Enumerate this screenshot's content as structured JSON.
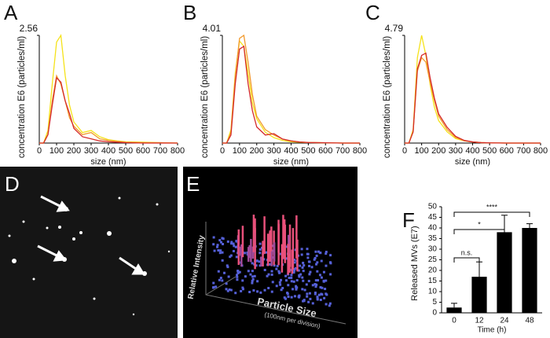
{
  "chart_data": [
    {
      "type": "line",
      "label": "A",
      "x_label": "size (nm)",
      "y_label": "concentration E6 (particles/ml)",
      "x": [
        0,
        25,
        50,
        75,
        100,
        125,
        150,
        175,
        200,
        250,
        300,
        350,
        400,
        450,
        500,
        600,
        700,
        800
      ],
      "series": [
        {
          "color": "#f5e21a",
          "values": [
            0,
            0,
            0.3,
            1.4,
            2.4,
            2.56,
            1.6,
            0.9,
            0.5,
            0.25,
            0.3,
            0.15,
            0.08,
            0.05,
            0.03,
            0.02,
            0.01,
            0
          ]
        },
        {
          "color": "#f29a2e",
          "values": [
            0,
            0,
            0.2,
            1.0,
            1.6,
            1.4,
            1.0,
            0.6,
            0.4,
            0.2,
            0.25,
            0.1,
            0.06,
            0.04,
            0.02,
            0.01,
            0.01,
            0
          ]
        },
        {
          "color": "#d42a2a",
          "values": [
            0,
            0,
            0.2,
            0.9,
            1.55,
            1.45,
            1.0,
            0.7,
            0.35,
            0.15,
            0.1,
            0.05,
            0.03,
            0.02,
            0.01,
            0,
            0,
            0
          ]
        }
      ],
      "xlim": [
        0,
        800
      ],
      "xticks": [
        0,
        100,
        200,
        300,
        400,
        500,
        600,
        700,
        800
      ],
      "ylim": [
        0,
        2.56
      ],
      "yticks": [
        2.56
      ]
    },
    {
      "type": "line",
      "label": "B",
      "x_label": "size (nm)",
      "y_label": "concentration E6 (particles/ml)",
      "x": [
        0,
        25,
        50,
        75,
        100,
        125,
        150,
        175,
        200,
        250,
        300,
        350,
        400,
        450,
        500,
        600,
        700,
        800
      ],
      "series": [
        {
          "color": "#f5e21a",
          "values": [
            0,
            0,
            0.5,
            2.6,
            3.8,
            3.6,
            2.6,
            1.5,
            0.9,
            0.4,
            0.2,
            0.1,
            0.05,
            0.03,
            0.02,
            0.01,
            0,
            0
          ]
        },
        {
          "color": "#f29a2e",
          "values": [
            0,
            0,
            0.4,
            2.5,
            3.9,
            4.01,
            3.0,
            1.8,
            1.0,
            0.5,
            0.3,
            0.15,
            0.08,
            0.04,
            0.02,
            0.01,
            0,
            0
          ]
        },
        {
          "color": "#d42a2a",
          "values": [
            0,
            0,
            0.3,
            2.2,
            3.5,
            3.6,
            2.2,
            1.2,
            0.6,
            0.3,
            0.35,
            0.15,
            0.08,
            0.04,
            0.02,
            0.01,
            0,
            0
          ]
        }
      ],
      "xlim": [
        0,
        800
      ],
      "xticks": [
        0,
        100,
        200,
        300,
        400,
        500,
        600,
        700,
        800
      ],
      "ylim": [
        0,
        4.01
      ],
      "yticks": [
        4.01
      ]
    },
    {
      "type": "line",
      "label": "C",
      "x_label": "size (nm)",
      "y_label": "concentration E6 (particles/ml)",
      "x": [
        0,
        25,
        50,
        75,
        100,
        125,
        150,
        175,
        200,
        250,
        300,
        350,
        400,
        450,
        500,
        600,
        700,
        800
      ],
      "series": [
        {
          "color": "#f5e21a",
          "values": [
            0,
            0,
            0.6,
            3.8,
            4.79,
            3.9,
            2.6,
            1.6,
            1.0,
            0.5,
            0.2,
            0.1,
            0.05,
            0.02,
            0.01,
            0,
            0,
            0
          ]
        },
        {
          "color": "#f29a2e",
          "values": [
            0,
            0,
            0.5,
            3.2,
            3.8,
            3.6,
            2.7,
            1.9,
            1.2,
            0.6,
            0.25,
            0.1,
            0.05,
            0.02,
            0.01,
            0,
            0,
            0
          ]
        },
        {
          "color": "#d42a2a",
          "values": [
            0,
            0,
            0.5,
            3.3,
            3.9,
            4.0,
            2.9,
            2.0,
            1.3,
            0.7,
            0.3,
            0.12,
            0.05,
            0.02,
            0.01,
            0,
            0,
            0
          ]
        }
      ],
      "xlim": [
        0,
        800
      ],
      "xticks": [
        0,
        100,
        200,
        300,
        400,
        500,
        600,
        700,
        800
      ],
      "ylim": [
        0,
        4.79
      ],
      "yticks": [
        4.79
      ]
    },
    {
      "type": "image",
      "label": "D"
    },
    {
      "type": "surface3d",
      "label": "E",
      "z_label": "Relative Intensity",
      "x_label": "Particle Size",
      "x_sublabel": "(100nm per division)"
    },
    {
      "type": "bar",
      "label": "F",
      "x_label": "Time (h)",
      "y_label": "Released MVs  (E7)",
      "categories": [
        "0",
        "12",
        "24",
        "48"
      ],
      "values": [
        2.5,
        17,
        38,
        40
      ],
      "errors": [
        2,
        7,
        8,
        2
      ],
      "color": "#000000",
      "ylim": [
        0,
        50
      ],
      "yticks": [
        0,
        5,
        10,
        15,
        20,
        25,
        30,
        35,
        40,
        45,
        50
      ],
      "annotations": [
        {
          "text": "n.s.",
          "from": 0,
          "to": 1
        },
        {
          "text": "*",
          "from": 0,
          "to": 2
        },
        {
          "text": "****",
          "from": 0,
          "to": 3
        }
      ]
    }
  ]
}
